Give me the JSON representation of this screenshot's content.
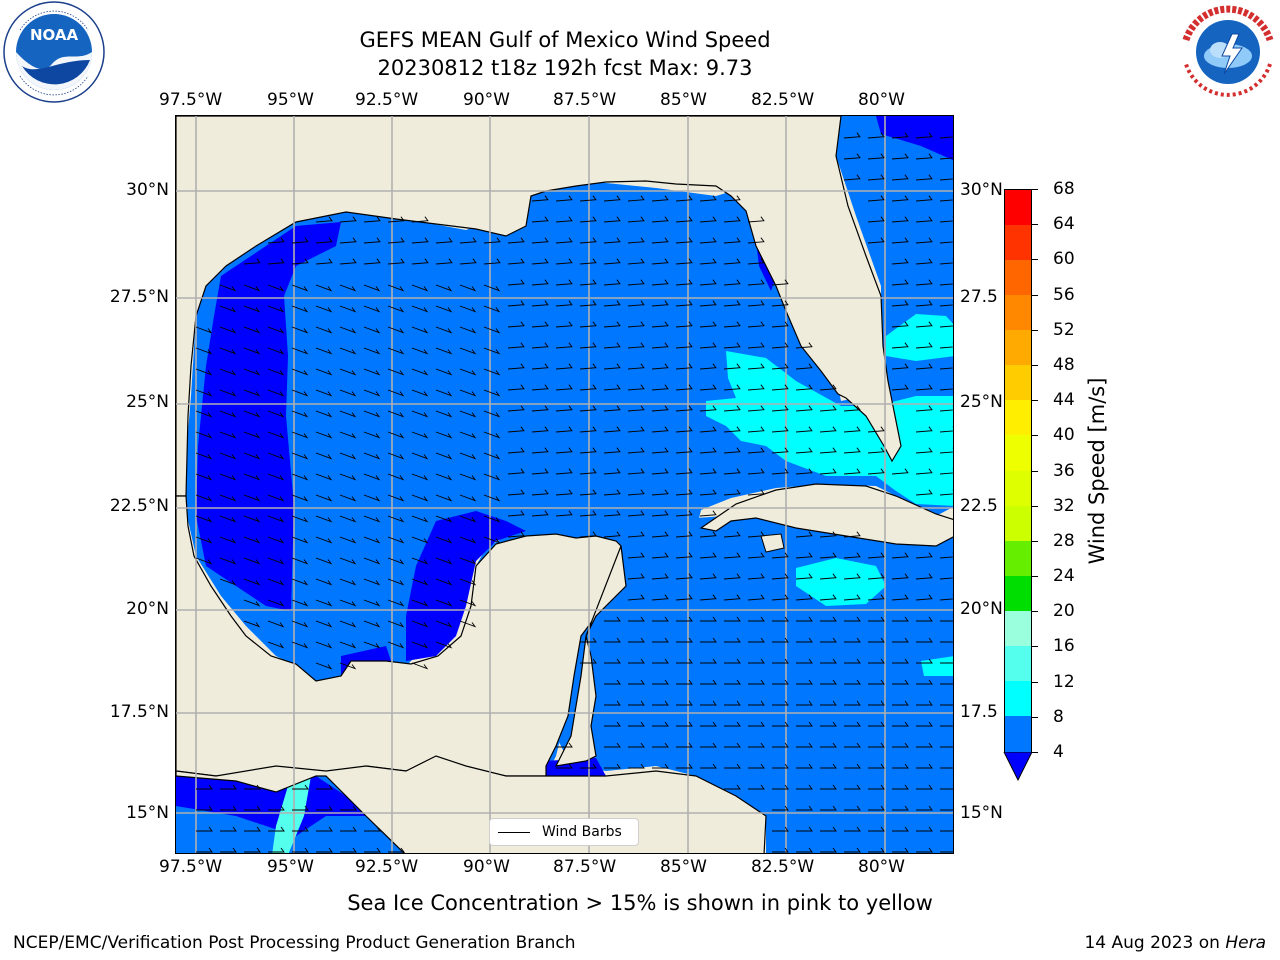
{
  "title": {
    "line1": "GEFS MEAN Gulf of Mexico Wind Speed",
    "line2": "20230812 t18z 192h fcst   Max: 9.73"
  },
  "logos": {
    "left": {
      "icon": "noaa-logo",
      "text": "NOAA",
      "ring_text": "NATIONAL OCEANIC AND ATMOSPHERIC ADMINISTRATION · U.S. DEPARTMENT OF COMMERCE"
    },
    "right": {
      "icon": "nws-logo",
      "ring_text": "NATIONAL WEATHER SERVICE"
    }
  },
  "axes": {
    "lon_labels": [
      "97.5°W",
      "95°W",
      "92.5°W",
      "90°W",
      "87.5°W",
      "85°W",
      "82.5°W",
      "80°W"
    ],
    "lat_labels_left": [
      "30°N",
      "27.5°N",
      "25°N",
      "22.5°N",
      "20°N",
      "17.5°N",
      "15°N"
    ],
    "lat_labels_right": [
      "30°N",
      "27.5",
      "25°N",
      "22.5",
      "20°N",
      "17.5",
      "15°N"
    ]
  },
  "legend": {
    "label": "Wind Barbs"
  },
  "colorbar": {
    "title": "Wind Speed [m/s]",
    "tick_labels": [
      "68",
      "64",
      "60",
      "56",
      "52",
      "48",
      "44",
      "40",
      "36",
      "32",
      "28",
      "24",
      "20",
      "16",
      "12",
      "8",
      "4"
    ],
    "colors_top_to_bottom": [
      "#ff0000",
      "#ff3300",
      "#ff6600",
      "#ff8800",
      "#ffaa00",
      "#ffcc00",
      "#ffee00",
      "#eeff00",
      "#ddff00",
      "#ccff00",
      "#66ee00",
      "#00dd00",
      "#55ff77",
      "#99ffdd",
      "#55ffee",
      "#00ffff",
      "#0077ff"
    ],
    "extend_color": "#0000ff"
  },
  "colors": {
    "land": "#efecdc",
    "wind_4_8": "#0077ff",
    "wind_below_4": "#0000ff",
    "wind_8_12": "#00ffff",
    "wind_12_16": "#55ffee",
    "grid": "#b0b0b0"
  },
  "note": "Sea Ice Concentration > 15% is shown in pink to yellow",
  "footer": {
    "left": "NCEP/EMC/Verification Post Processing Product Generation Branch",
    "right_date": "14 Aug 2023 on ",
    "right_machine": "Hera"
  }
}
